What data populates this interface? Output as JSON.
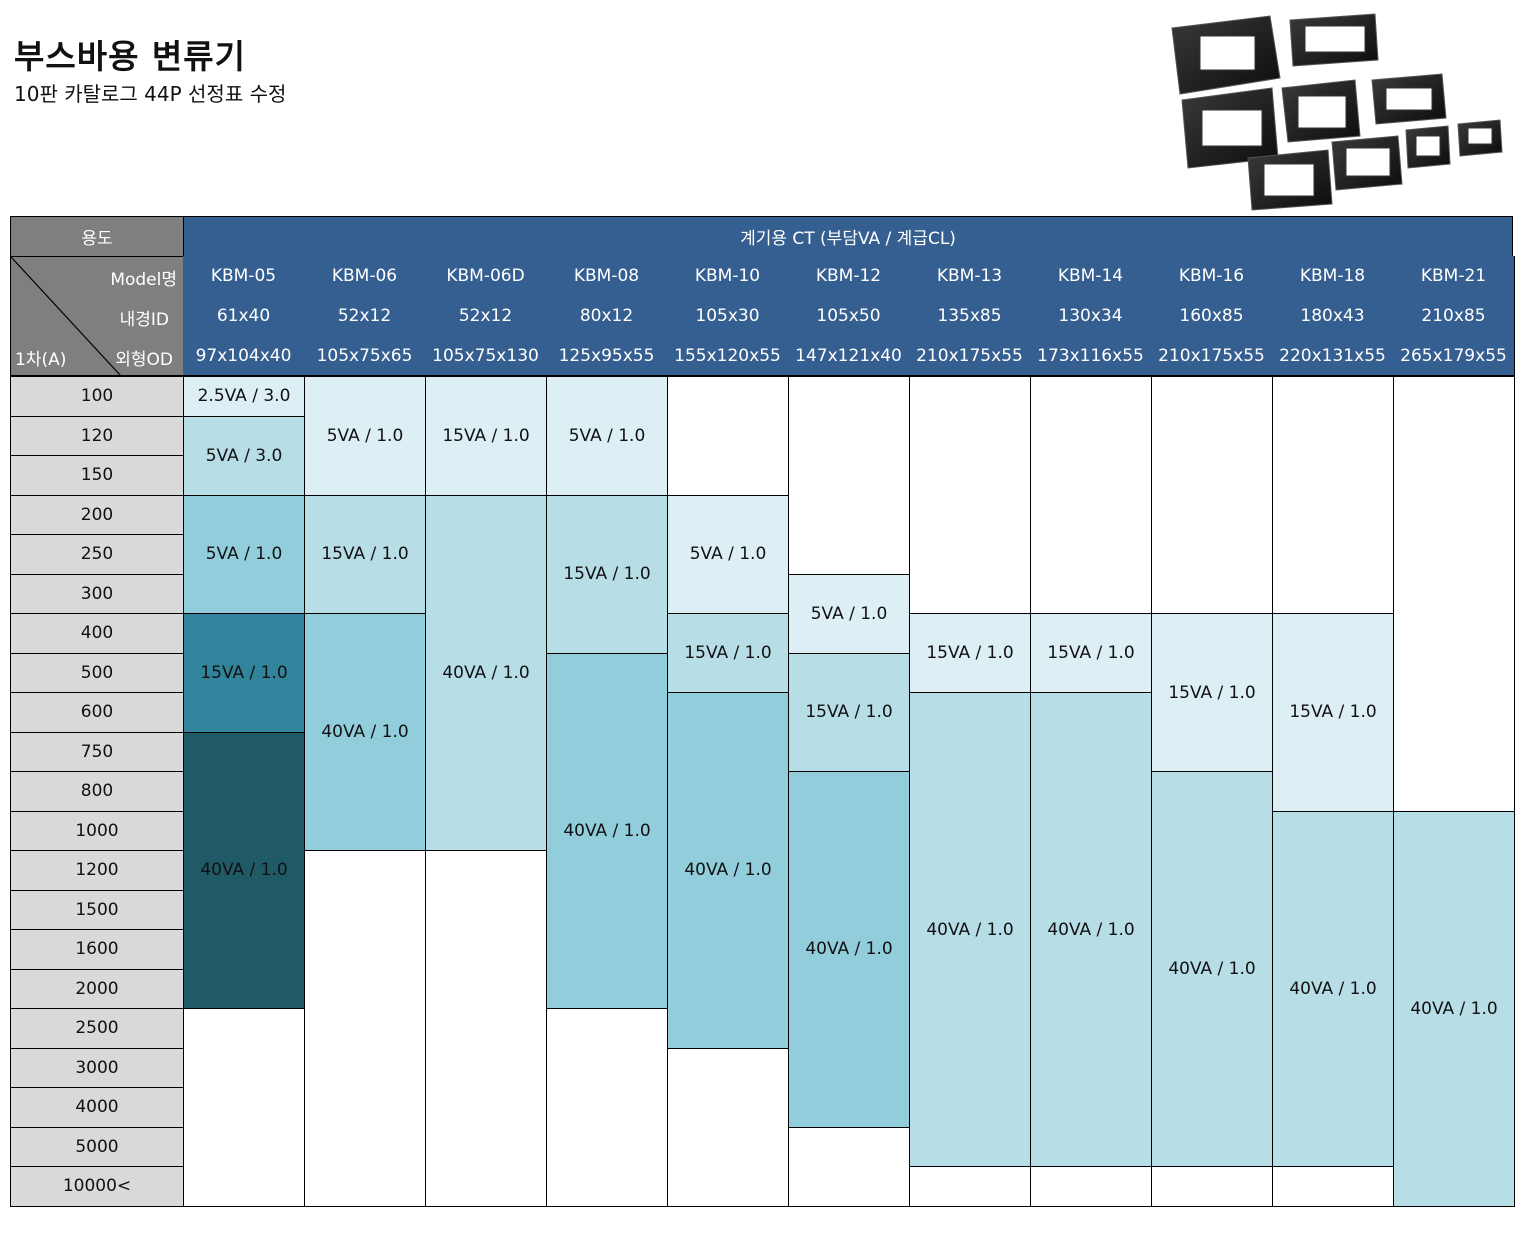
{
  "page": {
    "title": "부스바용 변류기",
    "subtitle": "10판 카탈로그 44P 선정표 수정"
  },
  "table": {
    "usage_label": "용도",
    "usage_value": "계기용 CT (부담VA / 계급CL)",
    "corner_labels": {
      "model": "Model명",
      "inner": "내경ID",
      "outer": "외형OD",
      "primary": "1차(A)"
    },
    "columns": [
      {
        "model": "KBM-05",
        "id": "61x40",
        "od": "97x104x40"
      },
      {
        "model": "KBM-06",
        "id": "52x12",
        "od": "105x75x65"
      },
      {
        "model": "KBM-06D",
        "id": "52x12",
        "od": "105x75x130"
      },
      {
        "model": "KBM-08",
        "id": "80x12",
        "od": "125x95x55"
      },
      {
        "model": "KBM-10",
        "id": "105x30",
        "od": "155x120x55"
      },
      {
        "model": "KBM-12",
        "id": "105x50",
        "od": "147x121x40"
      },
      {
        "model": "KBM-13",
        "id": "135x85",
        "od": "210x175x55"
      },
      {
        "model": "KBM-14",
        "id": "130x34",
        "od": "173x116x55"
      },
      {
        "model": "KBM-16",
        "id": "160x85",
        "od": "210x175x55"
      },
      {
        "model": "KBM-18",
        "id": "180x43",
        "od": "220x131x55"
      },
      {
        "model": "KBM-21",
        "id": "210x85",
        "od": "265x179x55"
      }
    ],
    "rows": [
      "100",
      "120",
      "150",
      "200",
      "250",
      "300",
      "400",
      "500",
      "600",
      "750",
      "800",
      "1000",
      "1200",
      "1500",
      "1600",
      "2000",
      "2500",
      "3000",
      "4000",
      "5000",
      "10000<"
    ],
    "colors": {
      "c1": "#ddeef4",
      "c2": "#b7dde7",
      "c3": "#92cddc",
      "c4": "#31849b",
      "c5": "#215a67"
    },
    "cells": [
      {
        "col": 0,
        "start": 0,
        "end": 0,
        "label": "2.5VA / 3.0",
        "color": "c1"
      },
      {
        "col": 0,
        "start": 1,
        "end": 2,
        "label": "5VA / 3.0",
        "color": "c2"
      },
      {
        "col": 0,
        "start": 3,
        "end": 5,
        "label": "5VA / 1.0",
        "color": "c3"
      },
      {
        "col": 0,
        "start": 6,
        "end": 8,
        "label": "15VA / 1.0",
        "color": "c4"
      },
      {
        "col": 0,
        "start": 9,
        "end": 15,
        "label": "40VA / 1.0",
        "color": "c5"
      },
      {
        "col": 1,
        "start": 0,
        "end": 2,
        "label": "5VA / 1.0",
        "color": "c1"
      },
      {
        "col": 1,
        "start": 3,
        "end": 5,
        "label": "15VA / 1.0",
        "color": "c2"
      },
      {
        "col": 1,
        "start": 6,
        "end": 11,
        "label": "40VA / 1.0",
        "color": "c3"
      },
      {
        "col": 2,
        "start": 0,
        "end": 2,
        "label": "15VA / 1.0",
        "color": "c1"
      },
      {
        "col": 2,
        "start": 3,
        "end": 11,
        "label": "40VA / 1.0",
        "color": "c2"
      },
      {
        "col": 3,
        "start": 0,
        "end": 2,
        "label": "5VA / 1.0",
        "color": "c1"
      },
      {
        "col": 3,
        "start": 3,
        "end": 6,
        "label": "15VA / 1.0",
        "color": "c2"
      },
      {
        "col": 3,
        "start": 7,
        "end": 15,
        "label": "40VA / 1.0",
        "color": "c3"
      },
      {
        "col": 4,
        "start": 3,
        "end": 5,
        "label": "5VA / 1.0",
        "color": "c1"
      },
      {
        "col": 4,
        "start": 6,
        "end": 7,
        "label": "15VA / 1.0",
        "color": "c2"
      },
      {
        "col": 4,
        "start": 8,
        "end": 16,
        "label": "40VA / 1.0",
        "color": "c3"
      },
      {
        "col": 5,
        "start": 5,
        "end": 6,
        "label": "5VA / 1.0",
        "color": "c1"
      },
      {
        "col": 5,
        "start": 7,
        "end": 9,
        "label": "15VA / 1.0",
        "color": "c2"
      },
      {
        "col": 5,
        "start": 10,
        "end": 18,
        "label": "40VA / 1.0",
        "color": "c3"
      },
      {
        "col": 6,
        "start": 6,
        "end": 7,
        "label": "15VA / 1.0",
        "color": "c1"
      },
      {
        "col": 6,
        "start": 8,
        "end": 19,
        "label": "40VA / 1.0",
        "color": "c2"
      },
      {
        "col": 7,
        "start": 6,
        "end": 7,
        "label": "15VA / 1.0",
        "color": "c1"
      },
      {
        "col": 7,
        "start": 8,
        "end": 19,
        "label": "40VA / 1.0",
        "color": "c2"
      },
      {
        "col": 8,
        "start": 6,
        "end": 9,
        "label": "15VA / 1.0",
        "color": "c1"
      },
      {
        "col": 8,
        "start": 10,
        "end": 19,
        "label": "40VA / 1.0",
        "color": "c2"
      },
      {
        "col": 9,
        "start": 6,
        "end": 10,
        "label": "15VA / 1.0",
        "color": "c1"
      },
      {
        "col": 9,
        "start": 11,
        "end": 19,
        "label": "40VA / 1.0",
        "color": "c2"
      },
      {
        "col": 10,
        "start": 11,
        "end": 20,
        "label": "40VA / 1.0",
        "color": "c2"
      }
    ],
    "empties": [
      {
        "col": 0,
        "start": 16,
        "end": 20
      },
      {
        "col": 1,
        "start": 12,
        "end": 20
      },
      {
        "col": 2,
        "start": 12,
        "end": 20
      },
      {
        "col": 3,
        "start": 16,
        "end": 20
      },
      {
        "col": 4,
        "start": 0,
        "end": 2
      },
      {
        "col": 4,
        "start": 17,
        "end": 20
      },
      {
        "col": 5,
        "start": 0,
        "end": 4
      },
      {
        "col": 5,
        "start": 19,
        "end": 20
      },
      {
        "col": 6,
        "start": 0,
        "end": 5
      },
      {
        "col": 6,
        "start": 20,
        "end": 20
      },
      {
        "col": 7,
        "start": 0,
        "end": 5
      },
      {
        "col": 7,
        "start": 20,
        "end": 20
      },
      {
        "col": 8,
        "start": 0,
        "end": 5
      },
      {
        "col": 8,
        "start": 20,
        "end": 20
      },
      {
        "col": 9,
        "start": 0,
        "end": 5
      },
      {
        "col": 9,
        "start": 20,
        "end": 20
      },
      {
        "col": 10,
        "start": 0,
        "end": 10
      }
    ]
  }
}
